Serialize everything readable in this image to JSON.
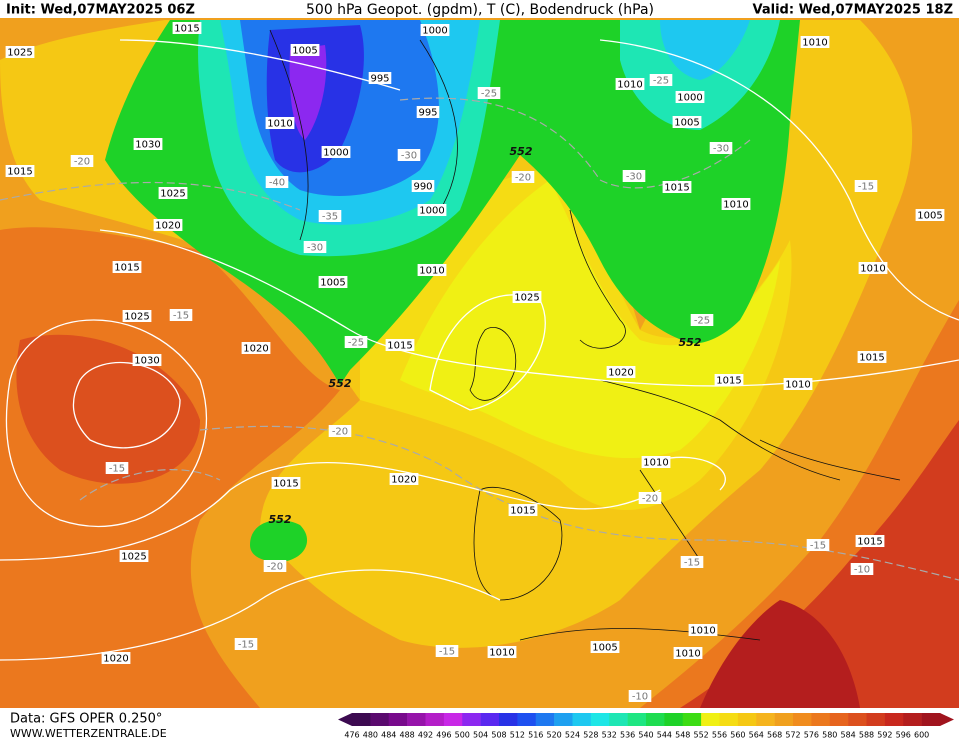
{
  "header": {
    "init": "Init: Wed,07MAY2025 06Z",
    "title": "500 hPa Geopot. (gpdm), T (C), Bodendruck (hPa)",
    "valid": "Valid: Wed,07MAY2025 18Z"
  },
  "footer": {
    "source": "Data: GFS OPER 0.250°",
    "site": "WWW.WETTERZENTRALE.DE"
  },
  "colorbar": {
    "labels": [
      476,
      480,
      484,
      488,
      492,
      496,
      500,
      504,
      508,
      512,
      516,
      520,
      524,
      528,
      532,
      536,
      540,
      544,
      548,
      552,
      556,
      560,
      564,
      568,
      572,
      576,
      580,
      584,
      588,
      592,
      596,
      600
    ],
    "colors": [
      "#3c0a50",
      "#5a0a6e",
      "#780a8c",
      "#9614aa",
      "#b41ec8",
      "#c828e6",
      "#8c28f0",
      "#5a28f0",
      "#2832e6",
      "#1e50f0",
      "#1e78f0",
      "#1ea0f0",
      "#1ec8f0",
      "#1ee6e6",
      "#1ee6b4",
      "#1ee682",
      "#1edc50",
      "#1ed228",
      "#3cdc14",
      "#f0f014",
      "#f5dc14",
      "#f5c814",
      "#f5b41e",
      "#f0a01e",
      "#f08c1e",
      "#eb781e",
      "#e6641e",
      "#dc501e",
      "#d23c1e",
      "#c8281e",
      "#b41e1e",
      "#a0141e"
    ]
  },
  "isobar_labels": [
    "1015",
    "1025",
    "1005",
    "1000",
    "995",
    "1010",
    "1010",
    "1000",
    "1005",
    "995",
    "1010",
    "1030",
    "1000",
    "990",
    "1015",
    "1015",
    "1025",
    "1000",
    "1010",
    "1005",
    "1020",
    "1010",
    "1015",
    "1005",
    "1010",
    "1025",
    "1025",
    "1020",
    "1015",
    "1030",
    "1015",
    "1020",
    "1015",
    "1010",
    "1020",
    "1010",
    "1015",
    "1015",
    "1015",
    "1025",
    "1010",
    "1005",
    "1010",
    "1010",
    "1020"
  ],
  "temp_labels": [
    "-20",
    "-25",
    "-25",
    "-30",
    "-30",
    "-30",
    "-40",
    "-35",
    "-30",
    "-20",
    "-15",
    "-15",
    "-25",
    "-25",
    "-20",
    "-15",
    "-20",
    "-20",
    "-15",
    "-15",
    "-10",
    "-15",
    "-15",
    "-10"
  ],
  "geopot_labels": [
    "552",
    "552",
    "552",
    "552"
  ]
}
